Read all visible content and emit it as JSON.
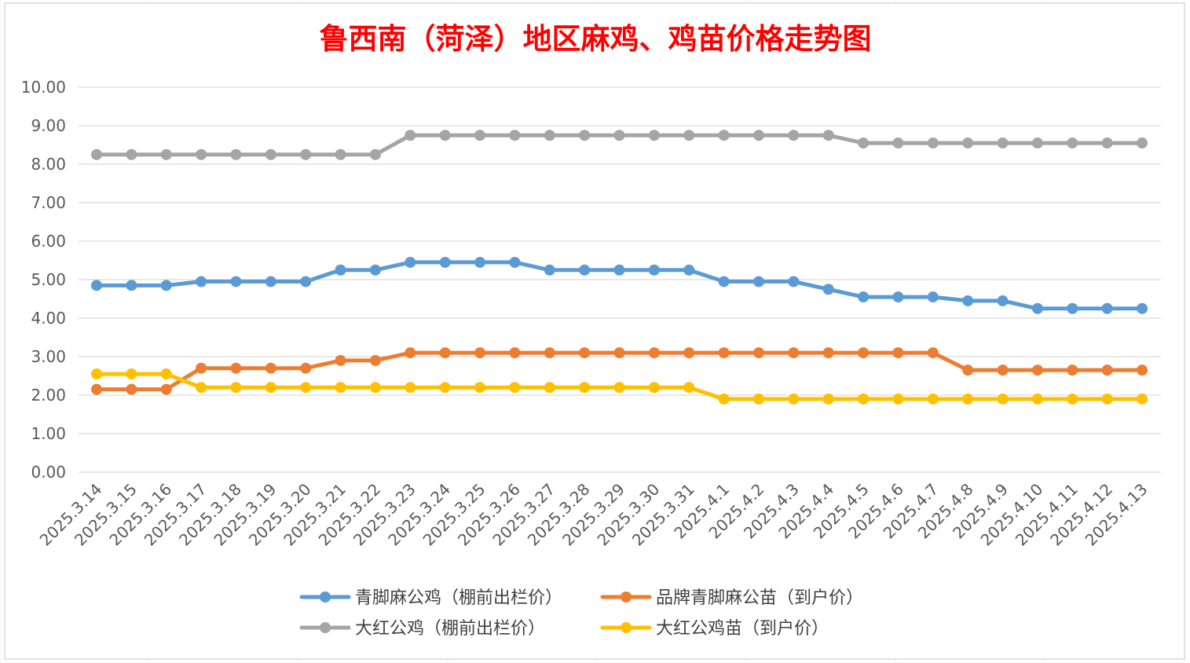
{
  "chart_data": {
    "type": "line",
    "title": "鲁西南（菏泽）地区麻鸡、鸡苗价格走势图",
    "title_color": "#ff0000",
    "xlabel": "",
    "ylabel": "",
    "ylim": [
      0,
      10
    ],
    "yticks": [
      "0.00",
      "1.00",
      "2.00",
      "3.00",
      "4.00",
      "5.00",
      "6.00",
      "7.00",
      "8.00",
      "9.00",
      "10.00"
    ],
    "grid": true,
    "legend_position": "bottom",
    "categories": [
      "2025.3.14",
      "2025.3.15",
      "2025.3.16",
      "2025.3.17",
      "2025.3.18",
      "2025.3.19",
      "2025.3.20",
      "2025.3.21",
      "2025.3.22",
      "2025.3.23",
      "2025.3.24",
      "2025.3.25",
      "2025.3.26",
      "2025.3.27",
      "2025.3.28",
      "2025.3.29",
      "2025.3.30",
      "2025.3.31",
      "2025.4.1",
      "2025.4.2",
      "2025.4.3",
      "2025.4.4",
      "2025.4.5",
      "2025.4.6",
      "2025.4.7",
      "2025.4.8",
      "2025.4.9",
      "2025.4.10",
      "2025.4.11",
      "2025.4.12",
      "2025.4.13"
    ],
    "series": [
      {
        "name": "青脚麻公鸡（棚前出栏价）",
        "color": "#5b9bd5",
        "values": [
          4.85,
          4.85,
          4.85,
          4.95,
          4.95,
          4.95,
          4.95,
          5.25,
          5.25,
          5.45,
          5.45,
          5.45,
          5.45,
          5.25,
          5.25,
          5.25,
          5.25,
          5.25,
          4.95,
          4.95,
          4.95,
          4.75,
          4.55,
          4.55,
          4.55,
          4.45,
          4.45,
          4.25,
          4.25,
          4.25,
          4.25
        ]
      },
      {
        "name": "品牌青脚麻公苗（到户价）",
        "color": "#ed7d31",
        "values": [
          2.15,
          2.15,
          2.15,
          2.7,
          2.7,
          2.7,
          2.7,
          2.9,
          2.9,
          3.1,
          3.1,
          3.1,
          3.1,
          3.1,
          3.1,
          3.1,
          3.1,
          3.1,
          3.1,
          3.1,
          3.1,
          3.1,
          3.1,
          3.1,
          3.1,
          2.65,
          2.65,
          2.65,
          2.65,
          2.65,
          2.65
        ]
      },
      {
        "name": "大红公鸡（棚前出栏价）",
        "color": "#a5a5a5",
        "values": [
          8.25,
          8.25,
          8.25,
          8.25,
          8.25,
          8.25,
          8.25,
          8.25,
          8.25,
          8.75,
          8.75,
          8.75,
          8.75,
          8.75,
          8.75,
          8.75,
          8.75,
          8.75,
          8.75,
          8.75,
          8.75,
          8.75,
          8.55,
          8.55,
          8.55,
          8.55,
          8.55,
          8.55,
          8.55,
          8.55,
          8.55
        ]
      },
      {
        "name": "大红公鸡苗（到户价）",
        "color": "#ffc000",
        "values": [
          2.55,
          2.55,
          2.55,
          2.2,
          2.2,
          2.2,
          2.2,
          2.2,
          2.2,
          2.2,
          2.2,
          2.2,
          2.2,
          2.2,
          2.2,
          2.2,
          2.2,
          2.2,
          1.9,
          1.9,
          1.9,
          1.9,
          1.9,
          1.9,
          1.9,
          1.9,
          1.9,
          1.9,
          1.9,
          1.9,
          1.9
        ]
      }
    ]
  }
}
